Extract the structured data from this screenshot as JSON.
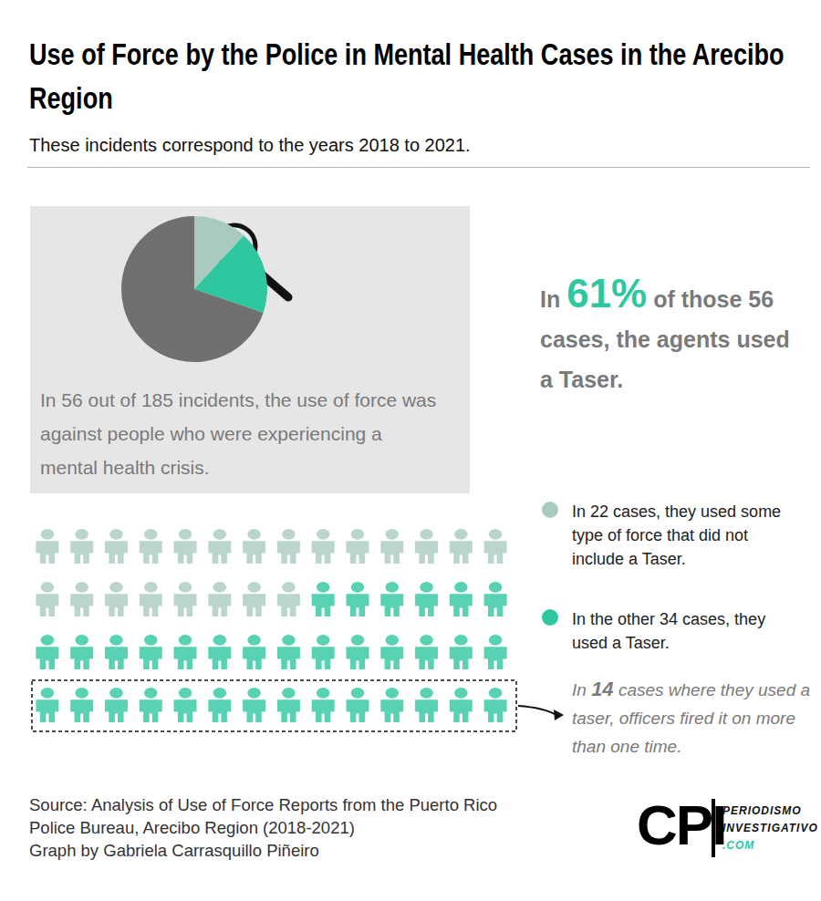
{
  "chart_data": [
    {
      "type": "pie",
      "title": "Use of Force by the Police in Mental Health Cases in the Arecibo Region",
      "subtitle": "These incidents correspond to the years 2018 to 2021.",
      "values": [
        22,
        34,
        129
      ],
      "colors": [
        "#a9cbbf",
        "#2ec7a0",
        "#707070"
      ],
      "data_labels": false,
      "annotation": "In 56 out of 185 incidents, the use of force was against people who were experiencing a mental health crisis."
    },
    {
      "type": "pictogram",
      "series": [
        {
          "name": "In 22 cases, they used some type of force that did not include a Taser.",
          "color": "#a9cbbf",
          "values": [
            22
          ]
        },
        {
          "name": "In the other 34 cases, they used a Taser.",
          "color": "#2ec7a0",
          "values": [
            34
          ]
        }
      ],
      "legend": "right",
      "fired_more_than_once": 14,
      "annotation": "In 14 cases where they used a taser, officers fired it on more than one time.",
      "callout": {
        "before": "In",
        "emphasis": "61%",
        "after": "of those 56 cases, the agents used a Taser."
      },
      "source": "Source: Analysis of Use of Force Reports from the Puerto Rico Police Bureau, Arecibo Region (2018-2021)",
      "credit": "Graph by Gabriela Carrasquillo Piñeiro",
      "logo": [
        "CPI",
        "PERIODISMO",
        "INVESTIGATIVO",
        ".COM"
      ]
    }
  ]
}
